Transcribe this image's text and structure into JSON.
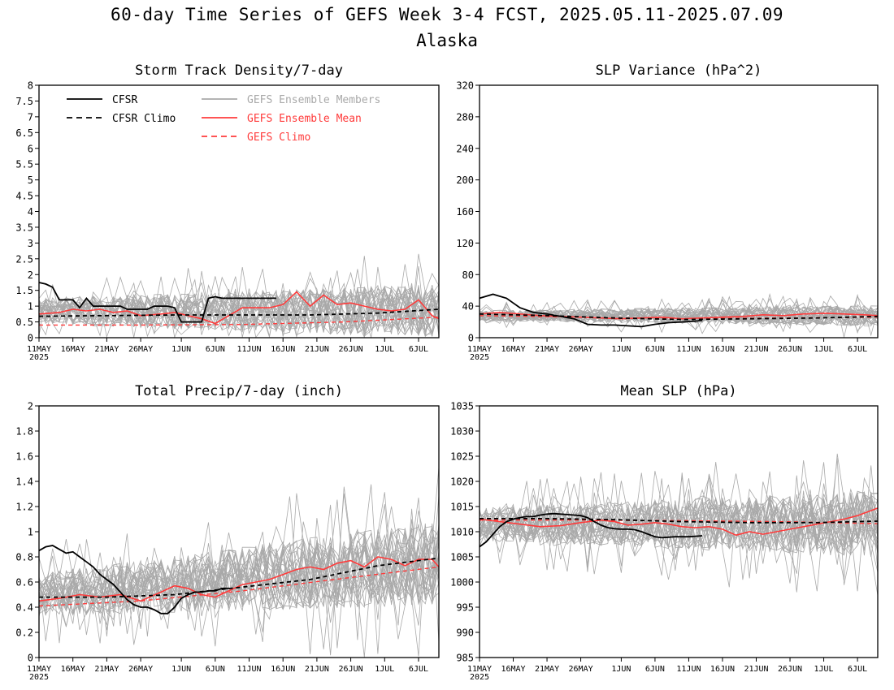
{
  "page": {
    "title": "60-day Time Series of GEFS Week 3-4 FCST, 2025.05.11-2025.07.09",
    "subtitle": "Alaska"
  },
  "colors": {
    "cfsr": "#000000",
    "members": "#a9a9a9",
    "ens_mean": "#ff3b3b",
    "gefs_climo": "#ff3b3b",
    "axes": "#000000",
    "background": "#ffffff"
  },
  "legend": {
    "cfsr": "CFSR",
    "cfsr_climo": "CFSR Climo",
    "members": "GEFS Ensemble Members",
    "ens_mean": "GEFS Ensemble Mean",
    "gefs_climo": "GEFS Climo"
  },
  "x_axis": {
    "ticks": [
      {
        "day": 0,
        "label": "11MAY"
      },
      {
        "day": 5,
        "label": "16MAY"
      },
      {
        "day": 10,
        "label": "21MAY"
      },
      {
        "day": 15,
        "label": "26MAY"
      },
      {
        "day": 21,
        "label": "1JUN"
      },
      {
        "day": 26,
        "label": "6JUN"
      },
      {
        "day": 31,
        "label": "11JUN"
      },
      {
        "day": 36,
        "label": "16JUN"
      },
      {
        "day": 41,
        "label": "21JUN"
      },
      {
        "day": 46,
        "label": "26JUN"
      },
      {
        "day": 51,
        "label": "1JUL"
      },
      {
        "day": 56,
        "label": "6JUL"
      }
    ],
    "year_label": "2025",
    "range_days": [
      0,
      59
    ]
  },
  "chart_data": [
    {
      "id": "storm-track",
      "type": "line",
      "title": "Storm Track Density/7-day",
      "ylim": [
        0,
        8
      ],
      "yticks": [
        0,
        0.5,
        1,
        1.5,
        2,
        2.5,
        3,
        3.5,
        4,
        4.5,
        5,
        5.5,
        6,
        6.5,
        7,
        7.5,
        8
      ],
      "ytick_labels": [
        "0",
        "0.5",
        "1",
        "1.5",
        "2",
        "2.5",
        "3",
        "3.5",
        "4",
        "4.5",
        "5",
        "5.5",
        "6",
        "6.5",
        "7",
        "7.5",
        "8"
      ],
      "members_center": 0.85,
      "members_spread": 0.7,
      "cfsr": {
        "x": [
          0,
          1,
          2,
          3,
          4,
          5,
          6,
          7,
          8,
          9,
          10,
          11,
          12,
          13,
          14,
          15,
          16,
          17,
          18,
          19,
          20,
          21,
          22,
          23,
          24,
          25,
          26,
          27,
          28,
          29,
          30,
          31,
          32,
          33,
          34,
          35
        ],
        "y": [
          1.75,
          1.7,
          1.6,
          1.2,
          1.2,
          1.2,
          0.95,
          1.25,
          1.0,
          1.0,
          1.0,
          1.0,
          1.0,
          0.9,
          0.9,
          0.9,
          0.9,
          1.0,
          1.0,
          1.0,
          0.95,
          0.5,
          0.5,
          0.5,
          0.5,
          1.25,
          1.3,
          1.25,
          1.25,
          1.25,
          1.25,
          1.25,
          1.25,
          1.25,
          1.25,
          1.25
        ]
      },
      "cfsr_climo": {
        "x": [
          0,
          10,
          20,
          30,
          40,
          50,
          59
        ],
        "y": [
          0.68,
          0.7,
          0.72,
          0.72,
          0.72,
          0.78,
          0.9
        ]
      },
      "ens_mean": {
        "x": [
          0,
          3,
          5,
          7,
          9,
          11,
          13,
          15,
          18,
          20,
          22,
          24,
          26,
          28,
          30,
          32,
          34,
          36,
          38,
          40,
          42,
          44,
          46,
          48,
          50,
          52,
          54,
          56,
          58,
          59
        ],
        "y": [
          0.75,
          0.8,
          0.9,
          0.85,
          0.9,
          0.8,
          0.85,
          0.7,
          0.75,
          0.8,
          0.7,
          0.6,
          0.45,
          0.7,
          0.95,
          0.95,
          0.95,
          1.05,
          1.45,
          1.0,
          1.35,
          1.05,
          1.1,
          1.0,
          0.9,
          0.85,
          0.9,
          1.2,
          0.7,
          0.6
        ]
      },
      "gefs_climo": {
        "x": [
          0,
          15,
          30,
          45,
          59
        ],
        "y": [
          0.4,
          0.4,
          0.42,
          0.5,
          0.65
        ]
      },
      "show_legend": true
    },
    {
      "id": "slp-variance",
      "type": "line",
      "title": "SLP Variance (hPa^2)",
      "ylim": [
        0,
        320
      ],
      "yticks": [
        0,
        40,
        80,
        120,
        160,
        200,
        240,
        280,
        320
      ],
      "ytick_labels": [
        "0",
        "40",
        "80",
        "120",
        "160",
        "200",
        "240",
        "280",
        "320"
      ],
      "members_center": 28,
      "members_spread": 11,
      "cfsr": {
        "x": [
          0,
          2,
          4,
          6,
          8,
          10,
          12,
          14,
          16,
          18,
          20,
          22,
          24,
          26,
          28,
          30,
          32,
          33
        ],
        "y": [
          50,
          55,
          50,
          38,
          32,
          30,
          27,
          24,
          17,
          16,
          16,
          15,
          14,
          17,
          19,
          20,
          21,
          22
        ]
      },
      "cfsr_climo": {
        "x": [
          0,
          10,
          20,
          30,
          40,
          50,
          59
        ],
        "y": [
          30,
          28,
          25,
          23,
          24,
          25,
          27
        ]
      },
      "ens_mean": {
        "x": [
          0,
          3,
          6,
          9,
          12,
          15,
          18,
          21,
          24,
          27,
          30,
          33,
          36,
          39,
          42,
          45,
          48,
          51,
          54,
          57,
          59
        ],
        "y": [
          30,
          32,
          30,
          28,
          27,
          26,
          25,
          24,
          25,
          26,
          24,
          25,
          26,
          27,
          29,
          28,
          30,
          31,
          30,
          29,
          28
        ]
      },
      "gefs_climo": {
        "x": [
          0,
          15,
          30,
          45,
          59
        ],
        "y": [
          28,
          26,
          24,
          25,
          26
        ]
      },
      "show_legend": false
    },
    {
      "id": "total-precip",
      "type": "line",
      "title": "Total Precip/7-day (inch)",
      "ylim": [
        0,
        2
      ],
      "yticks": [
        0,
        0.2,
        0.4,
        0.6,
        0.8,
        1,
        1.2,
        1.4,
        1.6,
        1.8,
        2
      ],
      "ytick_labels": [
        "0",
        "0.2",
        "0.4",
        "0.6",
        "0.8",
        "1",
        "1.2",
        "1.4",
        "1.6",
        "1.8",
        "2"
      ],
      "members_center_start": 0.5,
      "members_center_end": 0.75,
      "members_spread": 0.28,
      "cfsr": {
        "x": [
          0,
          1,
          2,
          3,
          4,
          5,
          6,
          7,
          8,
          9,
          10,
          11,
          12,
          13,
          14,
          15,
          16,
          17,
          18,
          19,
          20,
          21,
          22,
          23,
          24,
          25,
          26,
          27,
          28
        ],
        "y": [
          0.85,
          0.88,
          0.89,
          0.86,
          0.83,
          0.84,
          0.8,
          0.76,
          0.72,
          0.66,
          0.62,
          0.58,
          0.52,
          0.46,
          0.42,
          0.4,
          0.4,
          0.38,
          0.35,
          0.35,
          0.4,
          0.47,
          0.5,
          0.52,
          0.52,
          0.53,
          0.53,
          0.55,
          0.55
        ]
      },
      "cfsr_climo": {
        "x": [
          0,
          10,
          20,
          30,
          40,
          50,
          59
        ],
        "y": [
          0.48,
          0.48,
          0.5,
          0.56,
          0.62,
          0.73,
          0.79
        ]
      },
      "ens_mean": {
        "x": [
          0,
          3,
          6,
          9,
          12,
          15,
          18,
          20,
          22,
          24,
          26,
          28,
          30,
          32,
          34,
          36,
          38,
          40,
          42,
          44,
          46,
          48,
          50,
          52,
          54,
          56,
          58,
          59
        ],
        "y": [
          0.45,
          0.47,
          0.5,
          0.48,
          0.5,
          0.45,
          0.52,
          0.57,
          0.55,
          0.5,
          0.48,
          0.53,
          0.58,
          0.6,
          0.62,
          0.66,
          0.7,
          0.72,
          0.7,
          0.75,
          0.77,
          0.72,
          0.8,
          0.78,
          0.73,
          0.78,
          0.78,
          0.72
        ]
      },
      "gefs_climo": {
        "x": [
          0,
          15,
          30,
          45,
          59
        ],
        "y": [
          0.41,
          0.45,
          0.53,
          0.63,
          0.72
        ]
      },
      "show_legend": false
    },
    {
      "id": "mean-slp",
      "type": "line",
      "title": "Mean SLP (hPa)",
      "ylim": [
        985,
        1035
      ],
      "yticks": [
        985,
        990,
        995,
        1000,
        1005,
        1010,
        1015,
        1020,
        1025,
        1030,
        1035
      ],
      "ytick_labels": [
        "985",
        "990",
        "995",
        "1000",
        "1005",
        "1010",
        "1015",
        "1020",
        "1025",
        "1030",
        "1035"
      ],
      "members_center": 1011.5,
      "members_spread": 5.5,
      "cfsr": {
        "x": [
          0,
          1,
          2,
          3,
          4,
          5,
          6,
          7,
          8,
          9,
          10,
          11,
          12,
          13,
          14,
          15,
          16,
          17,
          18,
          19,
          20,
          21,
          22,
          23,
          24,
          25,
          26,
          27,
          28,
          29,
          30,
          31,
          32,
          33
        ],
        "y": [
          1007,
          1008,
          1009.5,
          1011,
          1012,
          1012.5,
          1012.8,
          1013,
          1013,
          1013.3,
          1013.5,
          1013.6,
          1013.5,
          1013.4,
          1013.3,
          1013.2,
          1012.8,
          1012,
          1011.3,
          1010.8,
          1010.6,
          1010.5,
          1010.5,
          1010.4,
          1010,
          1009.5,
          1009,
          1008.8,
          1008.9,
          1009,
          1009,
          1009,
          1009.1,
          1009.2
        ]
      },
      "cfsr_climo": {
        "x": [
          0,
          10,
          20,
          30,
          40,
          50,
          59
        ],
        "y": [
          1012.6,
          1012.6,
          1012.4,
          1012.0,
          1011.8,
          1011.8,
          1012.1
        ]
      },
      "ens_mean": {
        "x": [
          0,
          3,
          6,
          9,
          12,
          15,
          18,
          20,
          22,
          24,
          26,
          28,
          30,
          32,
          34,
          36,
          38,
          40,
          42,
          44,
          46,
          48,
          50,
          52,
          54,
          56,
          58,
          59
        ],
        "y": [
          1012.5,
          1012,
          1011.5,
          1011,
          1011.2,
          1011.8,
          1012.3,
          1012,
          1011.3,
          1011.5,
          1011.8,
          1011.5,
          1011,
          1010.8,
          1011,
          1010.5,
          1009.3,
          1010,
          1009.5,
          1010,
          1010.5,
          1011,
          1011.5,
          1012,
          1012.5,
          1013.2,
          1014.2,
          1014.7
        ]
      },
      "gefs_climo": {
        "x": [
          0,
          15,
          30,
          45,
          59
        ],
        "y": [
          1012.3,
          1012.3,
          1012.2,
          1012.0,
          1011.6
        ]
      },
      "show_legend": false
    }
  ]
}
